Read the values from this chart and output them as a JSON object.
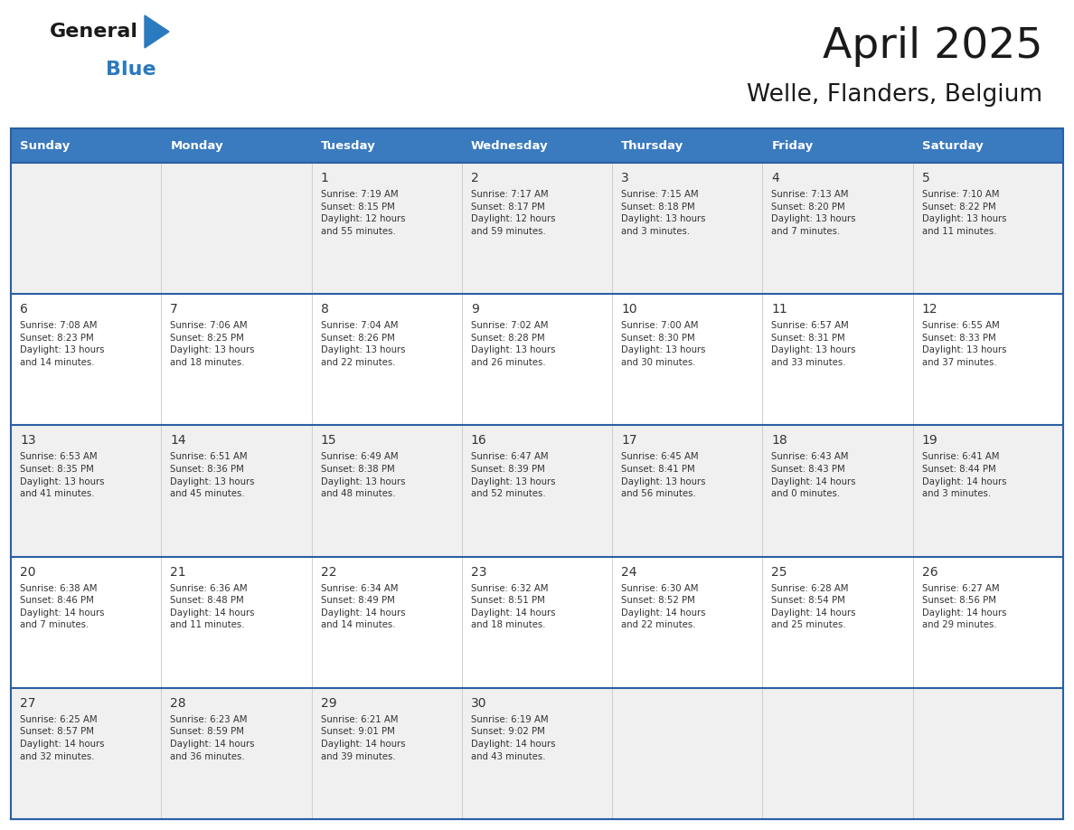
{
  "title": "April 2025",
  "subtitle": "Welle, Flanders, Belgium",
  "header_color": "#3a7abf",
  "header_text_color": "#ffffff",
  "cell_bg_even": "#f0f0f0",
  "cell_bg_odd": "#ffffff",
  "text_color": "#333333",
  "days_of_week": [
    "Sunday",
    "Monday",
    "Tuesday",
    "Wednesday",
    "Thursday",
    "Friday",
    "Saturday"
  ],
  "weeks": [
    [
      {
        "day": "",
        "info": ""
      },
      {
        "day": "",
        "info": ""
      },
      {
        "day": "1",
        "info": "Sunrise: 7:19 AM\nSunset: 8:15 PM\nDaylight: 12 hours\nand 55 minutes."
      },
      {
        "day": "2",
        "info": "Sunrise: 7:17 AM\nSunset: 8:17 PM\nDaylight: 12 hours\nand 59 minutes."
      },
      {
        "day": "3",
        "info": "Sunrise: 7:15 AM\nSunset: 8:18 PM\nDaylight: 13 hours\nand 3 minutes."
      },
      {
        "day": "4",
        "info": "Sunrise: 7:13 AM\nSunset: 8:20 PM\nDaylight: 13 hours\nand 7 minutes."
      },
      {
        "day": "5",
        "info": "Sunrise: 7:10 AM\nSunset: 8:22 PM\nDaylight: 13 hours\nand 11 minutes."
      }
    ],
    [
      {
        "day": "6",
        "info": "Sunrise: 7:08 AM\nSunset: 8:23 PM\nDaylight: 13 hours\nand 14 minutes."
      },
      {
        "day": "7",
        "info": "Sunrise: 7:06 AM\nSunset: 8:25 PM\nDaylight: 13 hours\nand 18 minutes."
      },
      {
        "day": "8",
        "info": "Sunrise: 7:04 AM\nSunset: 8:26 PM\nDaylight: 13 hours\nand 22 minutes."
      },
      {
        "day": "9",
        "info": "Sunrise: 7:02 AM\nSunset: 8:28 PM\nDaylight: 13 hours\nand 26 minutes."
      },
      {
        "day": "10",
        "info": "Sunrise: 7:00 AM\nSunset: 8:30 PM\nDaylight: 13 hours\nand 30 minutes."
      },
      {
        "day": "11",
        "info": "Sunrise: 6:57 AM\nSunset: 8:31 PM\nDaylight: 13 hours\nand 33 minutes."
      },
      {
        "day": "12",
        "info": "Sunrise: 6:55 AM\nSunset: 8:33 PM\nDaylight: 13 hours\nand 37 minutes."
      }
    ],
    [
      {
        "day": "13",
        "info": "Sunrise: 6:53 AM\nSunset: 8:35 PM\nDaylight: 13 hours\nand 41 minutes."
      },
      {
        "day": "14",
        "info": "Sunrise: 6:51 AM\nSunset: 8:36 PM\nDaylight: 13 hours\nand 45 minutes."
      },
      {
        "day": "15",
        "info": "Sunrise: 6:49 AM\nSunset: 8:38 PM\nDaylight: 13 hours\nand 48 minutes."
      },
      {
        "day": "16",
        "info": "Sunrise: 6:47 AM\nSunset: 8:39 PM\nDaylight: 13 hours\nand 52 minutes."
      },
      {
        "day": "17",
        "info": "Sunrise: 6:45 AM\nSunset: 8:41 PM\nDaylight: 13 hours\nand 56 minutes."
      },
      {
        "day": "18",
        "info": "Sunrise: 6:43 AM\nSunset: 8:43 PM\nDaylight: 14 hours\nand 0 minutes."
      },
      {
        "day": "19",
        "info": "Sunrise: 6:41 AM\nSunset: 8:44 PM\nDaylight: 14 hours\nand 3 minutes."
      }
    ],
    [
      {
        "day": "20",
        "info": "Sunrise: 6:38 AM\nSunset: 8:46 PM\nDaylight: 14 hours\nand 7 minutes."
      },
      {
        "day": "21",
        "info": "Sunrise: 6:36 AM\nSunset: 8:48 PM\nDaylight: 14 hours\nand 11 minutes."
      },
      {
        "day": "22",
        "info": "Sunrise: 6:34 AM\nSunset: 8:49 PM\nDaylight: 14 hours\nand 14 minutes."
      },
      {
        "day": "23",
        "info": "Sunrise: 6:32 AM\nSunset: 8:51 PM\nDaylight: 14 hours\nand 18 minutes."
      },
      {
        "day": "24",
        "info": "Sunrise: 6:30 AM\nSunset: 8:52 PM\nDaylight: 14 hours\nand 22 minutes."
      },
      {
        "day": "25",
        "info": "Sunrise: 6:28 AM\nSunset: 8:54 PM\nDaylight: 14 hours\nand 25 minutes."
      },
      {
        "day": "26",
        "info": "Sunrise: 6:27 AM\nSunset: 8:56 PM\nDaylight: 14 hours\nand 29 minutes."
      }
    ],
    [
      {
        "day": "27",
        "info": "Sunrise: 6:25 AM\nSunset: 8:57 PM\nDaylight: 14 hours\nand 32 minutes."
      },
      {
        "day": "28",
        "info": "Sunrise: 6:23 AM\nSunset: 8:59 PM\nDaylight: 14 hours\nand 36 minutes."
      },
      {
        "day": "29",
        "info": "Sunrise: 6:21 AM\nSunset: 9:01 PM\nDaylight: 14 hours\nand 39 minutes."
      },
      {
        "day": "30",
        "info": "Sunrise: 6:19 AM\nSunset: 9:02 PM\nDaylight: 14 hours\nand 43 minutes."
      },
      {
        "day": "",
        "info": ""
      },
      {
        "day": "",
        "info": ""
      },
      {
        "day": "",
        "info": ""
      }
    ]
  ],
  "logo_general_color": "#1a1a1a",
  "logo_blue_color": "#2a7abf",
  "divider_color": "#2a5fa5",
  "figsize": [
    11.88,
    9.18
  ],
  "dpi": 100
}
